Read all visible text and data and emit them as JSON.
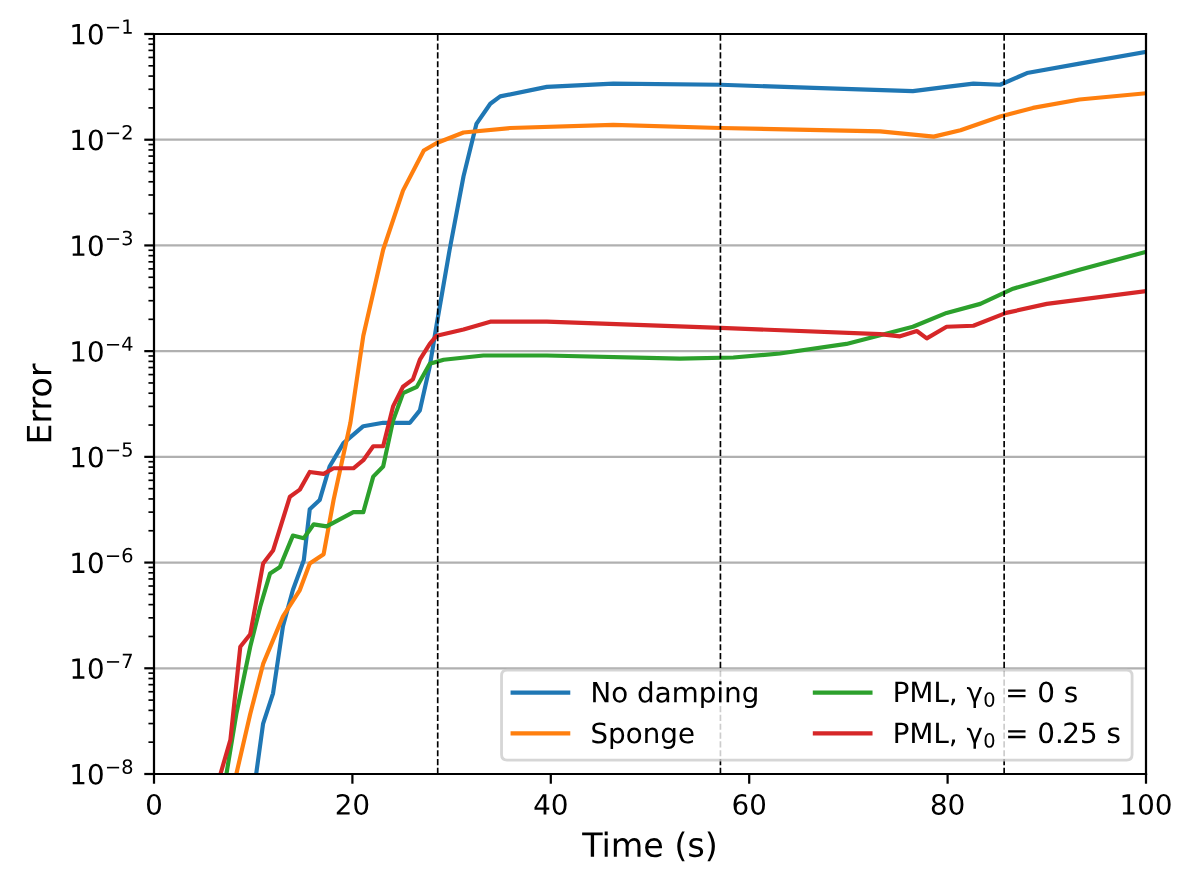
{
  "chart_data": {
    "type": "line",
    "xlabel": "Time (s)",
    "ylabel": "Error",
    "log": "y",
    "grid": "y",
    "legend": "bottom right",
    "xlim": [
      0,
      100
    ],
    "xticks": [
      0,
      20,
      40,
      60,
      80,
      100
    ],
    "ylim": [
      1e-08,
      0.1
    ],
    "yticks": [
      {
        "value": 1e-08,
        "label": "10$^{−8}$"
      },
      {
        "value": 1e-07,
        "label": "10$^{−7}$"
      },
      {
        "value": 1e-06,
        "label": "10$^{−6}$"
      },
      {
        "value": 1e-05,
        "label": "10$^{−5}$"
      },
      {
        "value": 0.0001,
        "label": "10$^{−4}$"
      },
      {
        "value": 0.001,
        "label": "10$^{−3}$"
      },
      {
        "value": 0.01,
        "label": "10$^{−2}$"
      },
      {
        "value": 0.1,
        "label": "10$^{−1}$"
      }
    ],
    "ref_lines": [
      {
        "axis": "x",
        "value": 28.6,
        "color": "#000000",
        "line_style": "dashed"
      },
      {
        "axis": "x",
        "value": 57.1,
        "color": "#000000",
        "line_style": "dashed"
      },
      {
        "axis": "x",
        "value": 85.7,
        "color": "#000000",
        "line_style": "dashed"
      }
    ],
    "series": [
      {
        "name": "No damping",
        "color": "#1f77b4",
        "x": [
          10.3,
          11.0,
          12.0,
          13.0,
          14.0,
          15.1,
          15.7,
          16.7,
          17.7,
          19.1,
          21.1,
          23.1,
          25.8,
          26.8,
          27.8,
          28.5,
          29.8,
          31.2,
          32.5,
          33.9,
          34.9,
          39.6,
          46.3,
          57.1,
          66.5,
          76.5,
          79.9,
          82.6,
          85.3,
          88.0,
          93.3,
          100
        ],
        "values": [
          1e-08,
          3e-08,
          5.8e-08,
          2.5e-07,
          5.5e-07,
          1.05e-06,
          3.2e-06,
          3.9e-06,
          8.1e-06,
          1.35e-05,
          1.95e-05,
          2.1e-05,
          2.1e-05,
          2.75e-05,
          7.2e-05,
          0.00018,
          0.00091,
          0.0045,
          0.0141,
          0.0219,
          0.0257,
          0.0316,
          0.0339,
          0.0331,
          0.0309,
          0.0288,
          0.0316,
          0.0339,
          0.0331,
          0.0427,
          0.0525,
          0.0676
        ]
      },
      {
        "name": "Sponge",
        "color": "#ff7f0e",
        "x": [
          8.3,
          9.7,
          11.0,
          13.0,
          14.7,
          15.7,
          17.1,
          18.1,
          19.8,
          21.1,
          23.1,
          25.1,
          27.2,
          28.5,
          31.2,
          35.9,
          46.3,
          57.1,
          73.2,
          78.6,
          81.3,
          85.3,
          88.6,
          93.3,
          100
        ],
        "values": [
          1e-08,
          3.7e-08,
          1.1e-07,
          3.1e-07,
          5.5e-07,
          9.8e-07,
          1.2e-06,
          3.9e-06,
          2.1e-05,
          0.00014,
          0.00091,
          0.0033,
          0.0079,
          0.0093,
          0.0117,
          0.0129,
          0.0138,
          0.0129,
          0.012,
          0.0107,
          0.0123,
          0.0166,
          0.02,
          0.024,
          0.0275
        ]
      },
      {
        "name": "PML, γ$_{0}$ = 0 s",
        "color": "#2ca02c",
        "x": [
          7.3,
          8.3,
          9.7,
          10.7,
          11.7,
          12.7,
          14.0,
          15.1,
          16.1,
          17.4,
          20.1,
          21.1,
          22.1,
          23.1,
          24.1,
          25.1,
          26.5,
          27.8,
          29.2,
          33.2,
          39.6,
          53.0,
          58.4,
          63.1,
          69.8,
          76.5,
          79.9,
          83.3,
          86.6,
          93.3,
          100
        ],
        "values": [
          1e-08,
          3.7e-08,
          1.6e-07,
          3.8e-07,
          7.9e-07,
          9.1e-07,
          1.8e-06,
          1.7e-06,
          2.3e-06,
          2.2e-06,
          3e-06,
          3e-06,
          6.5e-06,
          8.1e-06,
          2.2e-05,
          4e-05,
          4.6e-05,
          7.6e-05,
          8.3e-05,
          9.1e-05,
          9.1e-05,
          8.5e-05,
          8.7e-05,
          9.5e-05,
          0.000117,
          0.00017,
          0.00023,
          0.00028,
          0.00039,
          0.00059,
          0.00087
        ]
      },
      {
        "name": "PML, γ$_{0}$ = 0.25 s",
        "color": "#d62728",
        "x": [
          6.7,
          7.7,
          8.7,
          9.7,
          11.0,
          12.0,
          13.7,
          14.7,
          15.7,
          17.1,
          18.1,
          20.1,
          21.1,
          22.1,
          23.1,
          24.1,
          25.1,
          26.1,
          26.8,
          27.8,
          28.5,
          31.2,
          33.9,
          39.6,
          57.1,
          73.2,
          75.2,
          76.9,
          77.9,
          79.9,
          82.6,
          85.9,
          90.0,
          100
        ],
        "values": [
          1e-08,
          2.1e-08,
          1.6e-07,
          2.1e-07,
          9.8e-07,
          1.3e-06,
          4.2e-06,
          4.9e-06,
          7.2e-06,
          6.9e-06,
          7.8e-06,
          7.8e-06,
          9.3e-06,
          1.26e-05,
          1.26e-05,
          3e-05,
          4.6e-05,
          5.4e-05,
          8.3e-05,
          0.000117,
          0.00014,
          0.00016,
          0.00019,
          0.00019,
          0.000166,
          0.000145,
          0.000138,
          0.000155,
          0.000132,
          0.00017,
          0.000174,
          0.00023,
          0.00028,
          0.00037
        ]
      }
    ]
  }
}
